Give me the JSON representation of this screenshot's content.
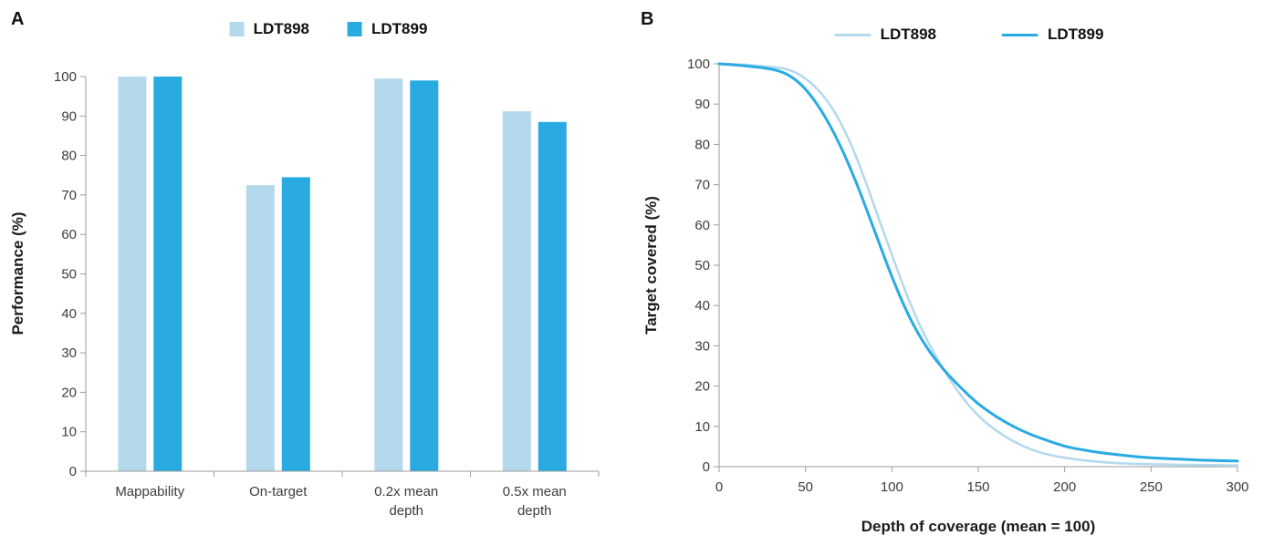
{
  "panels": [
    {
      "label": "A"
    },
    {
      "label": "B"
    }
  ],
  "chart_data": [
    {
      "type": "bar",
      "categories": [
        "Mappability",
        "On-target",
        "0.2x mean\ndepth",
        "0.5x mean\ndepth"
      ],
      "series": [
        {
          "name": "LDT898",
          "color": "#b5d9ec",
          "values": [
            100,
            72.5,
            99.5,
            91.2
          ]
        },
        {
          "name": "LDT899",
          "color": "#29abe2",
          "values": [
            100,
            74.5,
            99,
            88.5
          ]
        }
      ],
      "xlabel": "",
      "ylabel": "Performance (%)",
      "ylim": [
        0,
        100
      ],
      "yticks": [
        0,
        10,
        20,
        30,
        40,
        50,
        60,
        70,
        80,
        90,
        100
      ],
      "grid": false,
      "legend_position": "top"
    },
    {
      "type": "line",
      "series": [
        {
          "name": "LDT898",
          "color": "#b5d9ec",
          "x": [
            0,
            10,
            20,
            30,
            40,
            50,
            60,
            70,
            80,
            90,
            100,
            110,
            120,
            130,
            140,
            150,
            160,
            170,
            180,
            190,
            200,
            210,
            220,
            230,
            240,
            250,
            260,
            270,
            280,
            290,
            300
          ],
          "y": [
            100,
            99.9,
            99.6,
            99.2,
            98.8,
            96.5,
            92.5,
            86,
            76.5,
            64.5,
            52.5,
            41,
            31.5,
            24,
            17.5,
            12.5,
            9,
            6.3,
            4.3,
            3,
            2.2,
            1.6,
            1.2,
            0.9,
            0.7,
            0.6,
            0.5,
            0.45,
            0.4,
            0.35,
            0.3
          ]
        },
        {
          "name": "LDT899",
          "color": "#29abe2",
          "x": [
            0,
            10,
            20,
            30,
            40,
            50,
            60,
            70,
            80,
            90,
            100,
            110,
            120,
            130,
            140,
            150,
            160,
            170,
            180,
            190,
            200,
            210,
            220,
            230,
            240,
            250,
            260,
            270,
            280,
            290,
            300
          ],
          "y": [
            100,
            99.7,
            99.3,
            98.8,
            97.5,
            94,
            88,
            80,
            70,
            58.5,
            47,
            37,
            29.5,
            24,
            19.5,
            15.5,
            12.5,
            10,
            8,
            6.5,
            5,
            4.2,
            3.5,
            3,
            2.5,
            2.2,
            2,
            1.8,
            1.6,
            1.5,
            1.4
          ]
        }
      ],
      "xlabel": "Depth of coverage (mean = 100)",
      "ylabel": "Target covered (%)",
      "xlim": [
        0,
        300
      ],
      "ylim": [
        0,
        100
      ],
      "xticks": [
        0,
        50,
        100,
        150,
        200,
        250,
        300
      ],
      "yticks": [
        0,
        10,
        20,
        30,
        40,
        50,
        60,
        70,
        80,
        90,
        100
      ],
      "grid": false,
      "legend_position": "top"
    }
  ]
}
